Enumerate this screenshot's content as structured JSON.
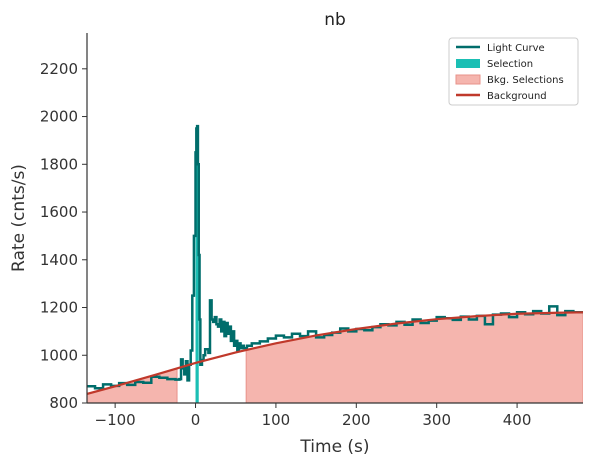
{
  "chart_data": {
    "type": "line",
    "title": "nb",
    "xlabel": "Time (s)",
    "ylabel": "Rate (cnts/s)",
    "xlim": [
      -135,
      482
    ],
    "ylim": [
      800,
      2350
    ],
    "xticks": [
      -100,
      0,
      100,
      200,
      300,
      400
    ],
    "xtick_labels": [
      "−100",
      "0",
      "100",
      "200",
      "300",
      "400"
    ],
    "yticks": [
      800,
      1000,
      1200,
      1400,
      1600,
      1800,
      2000,
      2200
    ],
    "ytick_labels": [
      "800",
      "1000",
      "1200",
      "1400",
      "1600",
      "1800",
      "2000",
      "2200"
    ],
    "grid": false,
    "legend_position": "top-right",
    "legend": [
      {
        "label": "Light Curve",
        "kind": "line",
        "color": "#006d6b"
      },
      {
        "label": "Selection",
        "kind": "patch",
        "color": "#1bbfb4"
      },
      {
        "label": "Bkg. Selections",
        "kind": "patch",
        "color": "#f5b5ae"
      },
      {
        "label": "Background",
        "kind": "line",
        "color": "#c0392b"
      }
    ],
    "colors": {
      "light_curve": "#006d6b",
      "selection": "#1bbfb4",
      "bkg_selection": "#f5b5ae",
      "bkg_selection_edge": "#e8928a",
      "background": "#c0392b"
    },
    "selection": [
      0,
      4
    ],
    "bkg_selections": [
      [
        -135,
        -23
      ],
      [
        63,
        482
      ]
    ],
    "background_fit": {
      "x": [
        -135,
        -100,
        -50,
        0,
        50,
        100,
        150,
        200,
        250,
        300,
        350,
        400,
        450,
        482
      ],
      "y": [
        838,
        870,
        918,
        968,
        1012,
        1050,
        1083,
        1110,
        1133,
        1151,
        1164,
        1174,
        1178,
        1180
      ]
    },
    "light_curve": {
      "x": [
        -135,
        -125,
        -115,
        -105,
        -95,
        -85,
        -75,
        -65,
        -55,
        -45,
        -35,
        -25,
        -20,
        -18,
        -16,
        -14,
        -12,
        -10,
        -8,
        -6,
        -4,
        -2,
        0,
        1,
        2,
        3,
        4,
        5,
        6,
        8,
        10,
        12,
        16,
        18,
        20,
        22,
        24,
        26,
        28,
        30,
        32,
        34,
        36,
        38,
        40,
        42,
        44,
        46,
        48,
        50,
        52,
        54,
        56,
        58,
        60,
        64,
        70,
        80,
        90,
        100,
        110,
        120,
        130,
        140,
        150,
        160,
        170,
        180,
        190,
        200,
        210,
        220,
        230,
        240,
        250,
        260,
        270,
        280,
        290,
        300,
        310,
        320,
        330,
        340,
        350,
        360,
        370,
        380,
        390,
        400,
        410,
        420,
        430,
        440,
        450,
        460,
        470,
        482
      ],
      "y": [
        870,
        862,
        878,
        872,
        883,
        876,
        888,
        885,
        910,
        906,
        900,
        898,
        900,
        983,
        945,
        920,
        975,
        895,
        960,
        1020,
        1250,
        1500,
        1850,
        1950,
        1960,
        1800,
        1420,
        1150,
        960,
        980,
        1000,
        1025,
        1010,
        1230,
        1150,
        1140,
        1160,
        1130,
        1120,
        1150,
        1100,
        1140,
        1080,
        1135,
        1090,
        1120,
        1060,
        1100,
        1040,
        1060,
        1020,
        1050,
        1030,
        1040,
        1030,
        1040,
        1050,
        1058,
        1070,
        1082,
        1075,
        1090,
        1080,
        1100,
        1075,
        1085,
        1095,
        1112,
        1100,
        1110,
        1105,
        1118,
        1130,
        1125,
        1140,
        1128,
        1150,
        1135,
        1145,
        1160,
        1155,
        1148,
        1162,
        1150,
        1165,
        1130,
        1170,
        1175,
        1160,
        1180,
        1172,
        1185,
        1175,
        1205,
        1168,
        1185,
        1180,
        1180
      ]
    }
  }
}
